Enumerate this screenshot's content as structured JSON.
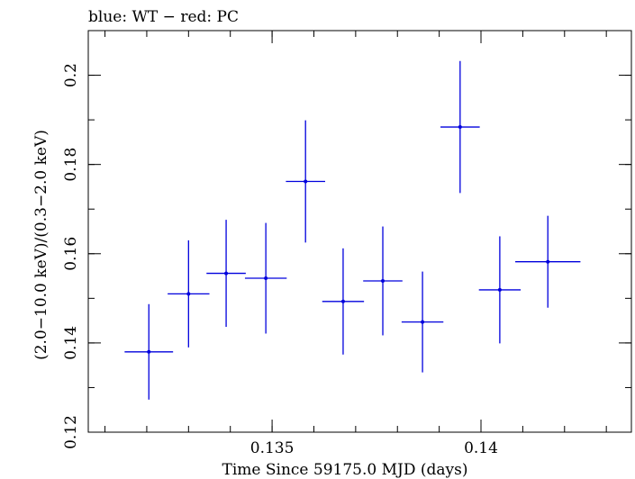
{
  "chart_data": {
    "type": "scatter",
    "title": "blue: WT − red: PC",
    "xlabel": "Time Since 59175.0 MJD (days)",
    "ylabel": "(2.0−10.0 keV)/(0.3−2.0 keV)",
    "xlim": [
      0.1306,
      0.1436
    ],
    "ylim": [
      0.12,
      0.21
    ],
    "x_ticks": [
      {
        "value": 0.135,
        "label": "0.135"
      },
      {
        "value": 0.14,
        "label": "0.14"
      }
    ],
    "x_minor_step": 0.001,
    "y_ticks": [
      {
        "value": 0.12,
        "label": "0.12"
      },
      {
        "value": 0.14,
        "label": "0.14"
      },
      {
        "value": 0.16,
        "label": "0.16"
      },
      {
        "value": 0.18,
        "label": "0.18"
      },
      {
        "value": 0.2,
        "label": "0.2"
      }
    ],
    "y_minor_step": 0.01,
    "grid": false,
    "series": [
      {
        "color": "#0000dd",
        "points": [
          {
            "x": 0.13205,
            "xerr": 0.00058,
            "y": 0.138,
            "yerr": 0.0107
          },
          {
            "x": 0.133,
            "xerr": 0.0005,
            "y": 0.151,
            "yerr": 0.012
          },
          {
            "x": 0.1339,
            "xerr": 0.00047,
            "y": 0.1556,
            "yerr": 0.012
          },
          {
            "x": 0.13485,
            "xerr": 0.0005,
            "y": 0.1545,
            "yerr": 0.0124
          },
          {
            "x": 0.1358,
            "xerr": 0.00047,
            "y": 0.1762,
            "yerr": 0.0137
          },
          {
            "x": 0.1367,
            "xerr": 0.0005,
            "y": 0.1493,
            "yerr": 0.0119
          },
          {
            "x": 0.13765,
            "xerr": 0.00047,
            "y": 0.1539,
            "yerr": 0.0122
          },
          {
            "x": 0.1386,
            "xerr": 0.0005,
            "y": 0.1447,
            "yerr": 0.0113
          },
          {
            "x": 0.1395,
            "xerr": 0.00047,
            "y": 0.1884,
            "yerr": 0.0148
          },
          {
            "x": 0.14045,
            "xerr": 0.0005,
            "y": 0.1519,
            "yerr": 0.012
          },
          {
            "x": 0.1416,
            "xerr": 0.00078,
            "y": 0.1582,
            "yerr": 0.0103
          }
        ]
      }
    ]
  }
}
